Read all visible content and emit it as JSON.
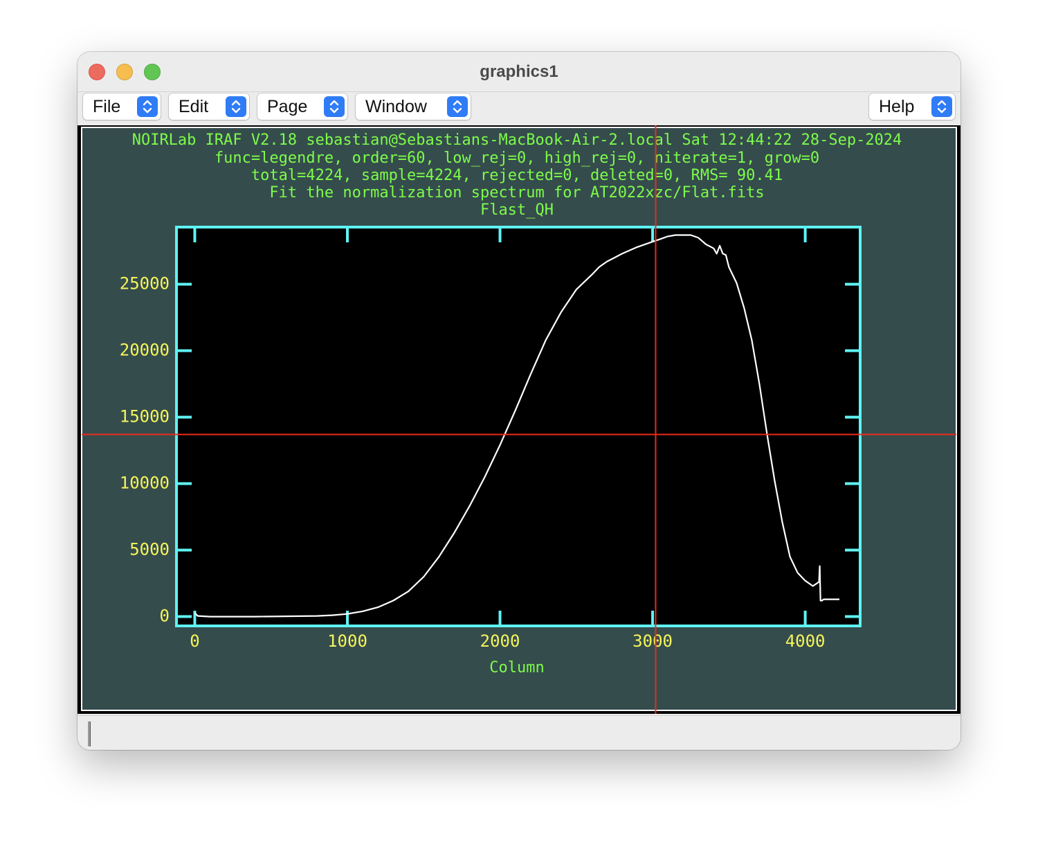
{
  "window": {
    "title": "graphics1"
  },
  "menubar": {
    "file": "File",
    "edit": "Edit",
    "page": "Page",
    "window": "Window",
    "help": "Help"
  },
  "plot": {
    "header_lines": [
      "NOIRLab IRAF V2.18 sebastian@Sebastians-MacBook-Air-2.local Sat 12:44:22 28-Sep-2024",
      "func=legendre, order=60, low_rej=0, high_rej=0, niterate=1, grow=0",
      "total=4224, sample=4224, rejected=0, deleted=0, RMS=  90.41",
      "Fit the normalization spectrum for AT2022xzc/Flat.fits",
      "Flast_QH"
    ],
    "colors": {
      "background": "#354c4d",
      "header_text": "#7dfc4a",
      "axis_frame": "#5ff3f3",
      "tick_labels": "#f5f55a",
      "curve": "#ffffff",
      "crosshair": "#ee2a1a",
      "plot_area": "#000000"
    }
  },
  "chart_data": {
    "type": "line",
    "title": "Flast_QH",
    "xlabel": "Column",
    "ylabel": "",
    "xlim": [
      -120,
      4360
    ],
    "ylim": [
      -700,
      29300
    ],
    "xticks": [
      0,
      1000,
      2000,
      3000,
      4000
    ],
    "xtick_labels": [
      "0",
      "1000",
      "2000",
      "3000",
      "4000"
    ],
    "yticks": [
      0,
      5000,
      10000,
      15000,
      20000,
      25000
    ],
    "ytick_labels": [
      "0",
      "5000",
      "10000",
      "15000",
      "20000",
      "25000"
    ],
    "grid": false,
    "legend": "none",
    "crosshair": {
      "x": 3020,
      "y": 13700
    },
    "series": [
      {
        "x": [
          0,
          10,
          20,
          100,
          400,
          800,
          900,
          1000,
          1100,
          1200,
          1300,
          1400,
          1500,
          1600,
          1700,
          1800,
          1900,
          2000,
          2100,
          2200,
          2300,
          2400,
          2500,
          2600,
          2650,
          2700,
          2800,
          2900,
          3000,
          3050,
          3100,
          3150,
          3200,
          3250,
          3300,
          3350,
          3400,
          3420,
          3440,
          3460,
          3480,
          3500,
          3550,
          3600,
          3650,
          3700,
          3750,
          3800,
          3850,
          3900,
          3950,
          4000,
          4050,
          4090,
          4095,
          4100,
          4110,
          4120,
          4200,
          4224
        ],
        "values": [
          300,
          150,
          50,
          0,
          0,
          50,
          100,
          200,
          400,
          700,
          1200,
          1900,
          3000,
          4500,
          6300,
          8300,
          10500,
          12900,
          15500,
          18200,
          20800,
          22900,
          24600,
          25700,
          26300,
          26700,
          27300,
          27800,
          28200,
          28400,
          28600,
          28700,
          28700,
          28700,
          28500,
          28000,
          27700,
          27300,
          27900,
          27300,
          27200,
          26300,
          25100,
          23200,
          20800,
          17500,
          13700,
          10200,
          7100,
          4500,
          3300,
          2700,
          2300,
          2600,
          3800,
          1200,
          1200,
          1300,
          1300,
          1300
        ]
      }
    ]
  }
}
